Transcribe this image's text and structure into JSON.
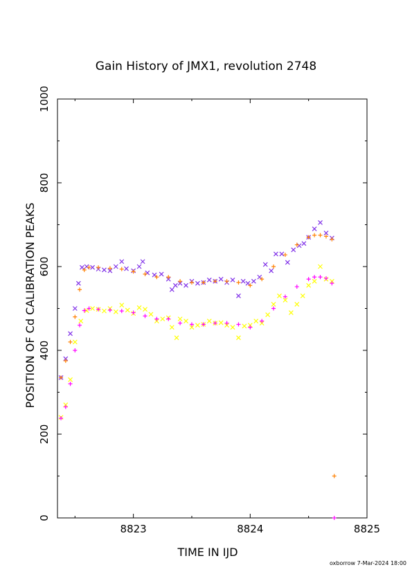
{
  "chart_data": {
    "type": "scatter",
    "title": "Gain History of JMX1, revolution 2748",
    "xlabel": "TIME IN IJD",
    "ylabel": "POSITION OF Cd CALIBRATION PEAKS",
    "xlim": [
      8822.35,
      8825
    ],
    "ylim": [
      0,
      1000
    ],
    "xticks": [
      "8823",
      "8824",
      "8825"
    ],
    "xtick_values": [
      8823,
      8824,
      8825
    ],
    "yticks": [
      "0",
      "200",
      "400",
      "600",
      "800",
      "1000"
    ],
    "ytick_values": [
      0,
      200,
      400,
      600,
      800,
      1000
    ],
    "grid": false,
    "series": [
      {
        "color": "#7f2fe8",
        "marker": "x",
        "x": [
          8822.38,
          8822.42,
          8822.46,
          8822.5,
          8822.53,
          8822.56,
          8822.6,
          8822.65,
          8822.7,
          8822.75,
          8822.8,
          8822.85,
          8822.9,
          8822.94,
          8823.0,
          8823.05,
          8823.08,
          8823.12,
          8823.18,
          8823.24,
          8823.3,
          8823.33,
          8823.36,
          8823.4,
          8823.45,
          8823.5,
          8823.55,
          8823.6,
          8823.65,
          8823.7,
          8823.75,
          8823.8,
          8823.85,
          8823.9,
          8823.94,
          8823.98,
          8824.03,
          8824.08,
          8824.13,
          8824.18,
          8824.22,
          8824.27,
          8824.32,
          8824.37,
          8824.42,
          8824.46,
          8824.5,
          8824.55,
          8824.6,
          8824.65,
          8824.7
        ],
        "y": [
          335,
          380,
          440,
          500,
          560,
          598,
          600,
          598,
          594,
          592,
          590,
          600,
          612,
          595,
          590,
          600,
          612,
          585,
          580,
          582,
          570,
          545,
          555,
          560,
          555,
          565,
          560,
          562,
          568,
          565,
          570,
          562,
          568,
          530,
          565,
          560,
          565,
          575,
          605,
          590,
          630,
          630,
          610,
          640,
          650,
          655,
          670,
          690,
          705,
          680,
          668
        ]
      },
      {
        "color": "#ff8000",
        "marker": "+",
        "x": [
          8822.38,
          8822.42,
          8822.46,
          8822.5,
          8822.54,
          8822.58,
          8822.62,
          8822.7,
          8822.8,
          8822.9,
          8823.0,
          8823.1,
          8823.2,
          8823.3,
          8823.4,
          8823.5,
          8823.6,
          8823.7,
          8823.8,
          8823.9,
          8824.0,
          8824.1,
          8824.2,
          8824.3,
          8824.4,
          8824.5,
          8824.55,
          8824.6,
          8824.65,
          8824.7,
          8824.72
        ],
        "y": [
          335,
          375,
          420,
          480,
          545,
          592,
          598,
          598,
          596,
          594,
          588,
          582,
          575,
          575,
          565,
          562,
          562,
          565,
          565,
          562,
          555,
          570,
          600,
          628,
          652,
          670,
          675,
          675,
          672,
          665,
          100
        ]
      },
      {
        "color": "#ffff00",
        "marker": "x",
        "x": [
          8822.38,
          8822.42,
          8822.46,
          8822.5,
          8822.55,
          8822.6,
          8822.65,
          8822.7,
          8822.75,
          8822.8,
          8822.85,
          8822.9,
          8822.95,
          8823.0,
          8823.05,
          8823.1,
          8823.15,
          8823.2,
          8823.25,
          8823.3,
          8823.33,
          8823.37,
          8823.4,
          8823.45,
          8823.5,
          8823.55,
          8823.6,
          8823.65,
          8823.7,
          8823.75,
          8823.8,
          8823.85,
          8823.9,
          8823.95,
          8824.0,
          8824.05,
          8824.1,
          8824.15,
          8824.2,
          8824.25,
          8824.3,
          8824.35,
          8824.4,
          8824.45,
          8824.5,
          8824.55,
          8824.6,
          8824.65,
          8824.7
        ],
        "y": [
          240,
          270,
          330,
          420,
          470,
          495,
          500,
          498,
          494,
          500,
          492,
          508,
          496,
          488,
          502,
          498,
          486,
          470,
          475,
          478,
          455,
          430,
          475,
          470,
          455,
          460,
          462,
          470,
          465,
          466,
          460,
          455,
          430,
          458,
          460,
          470,
          465,
          485,
          510,
          530,
          520,
          490,
          510,
          530,
          555,
          565,
          600,
          570,
          565
        ]
      },
      {
        "color": "#ff00ff",
        "marker": "+",
        "x": [
          8822.38,
          8822.42,
          8822.46,
          8822.5,
          8822.54,
          8822.58,
          8822.62,
          8822.7,
          8822.8,
          8822.9,
          8823.0,
          8823.1,
          8823.2,
          8823.3,
          8823.4,
          8823.5,
          8823.6,
          8823.7,
          8823.8,
          8823.9,
          8824.0,
          8824.1,
          8824.2,
          8824.3,
          8824.4,
          8824.5,
          8824.55,
          8824.6,
          8824.65,
          8824.7,
          8824.72
        ],
        "y": [
          238,
          265,
          320,
          400,
          460,
          495,
          500,
          498,
          496,
          494,
          490,
          482,
          475,
          475,
          465,
          462,
          462,
          465,
          465,
          462,
          455,
          470,
          500,
          528,
          552,
          570,
          575,
          575,
          572,
          560,
          0
        ]
      }
    ]
  },
  "footer": "oxborrow  7-Mar-2024 18:00"
}
